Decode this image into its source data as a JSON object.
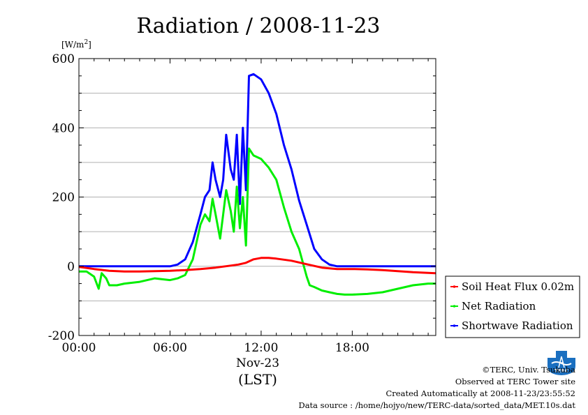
{
  "chart_data": {
    "type": "line",
    "title": "Radiation / 2008-11-23",
    "ylabel_base": "[W/m",
    "ylabel_sup": "2",
    "ylabel_end": "]",
    "xlabel_date": "Nov-23",
    "xlabel_tz": "(LST)",
    "xlim": [
      0,
      23.5
    ],
    "ylim": [
      -200,
      600
    ],
    "yticks": [
      -200,
      0,
      200,
      400,
      600
    ],
    "xticks": [
      0,
      6,
      12,
      18
    ],
    "xtick_labels": [
      "00:00",
      "06:00",
      "12:00",
      "18:00"
    ],
    "grid": true,
    "legend_position": "right",
    "series": [
      {
        "name": "Soil Heat Flux 0.02m",
        "color": "#ff0000",
        "x": [
          0,
          1,
          2,
          3,
          4,
          5,
          6,
          7,
          8,
          9,
          10,
          10.5,
          11,
          11.5,
          12,
          12.5,
          13,
          14,
          15,
          16,
          17,
          18,
          19,
          20,
          21,
          22,
          23.5
        ],
        "y": [
          -2,
          -8,
          -13,
          -15,
          -15,
          -14,
          -13,
          -11,
          -8,
          -4,
          2,
          5,
          10,
          20,
          24,
          24,
          22,
          16,
          6,
          -4,
          -8,
          -8,
          -9,
          -11,
          -14,
          -17,
          -20
        ]
      },
      {
        "name": "Net Radiation",
        "color": "#00ee00",
        "x": [
          0,
          0.5,
          1,
          1.3,
          1.5,
          1.8,
          2,
          2.5,
          3,
          4,
          5,
          6,
          6.5,
          7,
          7.5,
          8,
          8.3,
          8.6,
          8.8,
          9,
          9.3,
          9.5,
          9.7,
          10,
          10.2,
          10.4,
          10.6,
          10.8,
          11,
          11.2,
          11.5,
          12,
          12.5,
          13,
          13.5,
          14,
          14.5,
          15,
          15.2,
          15.5,
          16,
          16.5,
          17,
          17.5,
          18,
          19,
          20,
          21,
          22,
          23,
          23.5
        ],
        "y": [
          -15,
          -15,
          -30,
          -65,
          -20,
          -35,
          -55,
          -55,
          -50,
          -45,
          -35,
          -40,
          -35,
          -25,
          20,
          120,
          150,
          130,
          195,
          150,
          80,
          150,
          220,
          160,
          100,
          230,
          110,
          200,
          60,
          340,
          320,
          310,
          285,
          250,
          170,
          100,
          50,
          -30,
          -55,
          -60,
          -70,
          -75,
          -80,
          -82,
          -82,
          -80,
          -75,
          -65,
          -55,
          -50,
          -50
        ]
      },
      {
        "name": "Shortwave Radiation",
        "color": "#0000ff",
        "x": [
          0,
          1,
          2,
          3,
          4,
          5,
          6,
          6.5,
          7,
          7.5,
          8,
          8.3,
          8.6,
          8.8,
          9,
          9.3,
          9.5,
          9.7,
          10,
          10.2,
          10.4,
          10.6,
          10.8,
          11,
          11.2,
          11.5,
          12,
          12.5,
          13,
          13.5,
          14,
          14.5,
          15,
          15.5,
          16,
          16.5,
          17,
          18,
          19,
          20,
          21,
          22,
          23,
          23.5
        ],
        "y": [
          0,
          0,
          0,
          0,
          0,
          0,
          0,
          5,
          20,
          70,
          150,
          200,
          220,
          300,
          250,
          200,
          250,
          380,
          280,
          250,
          380,
          180,
          400,
          220,
          550,
          555,
          540,
          500,
          440,
          350,
          280,
          190,
          120,
          50,
          20,
          5,
          0,
          0,
          0,
          0,
          0,
          0,
          0,
          0
        ]
      }
    ]
  },
  "footer": {
    "copyright": "©TERC, Univ. Tsukuba",
    "observed": "Observed at TERC Tower site",
    "created": "Created Automatically at 2008-11-23/23:55:52",
    "source": "Data source : /home/hojyo/new/TERC-data/sorted_data/MET.10s.dat",
    "logo_text": "TERC"
  }
}
